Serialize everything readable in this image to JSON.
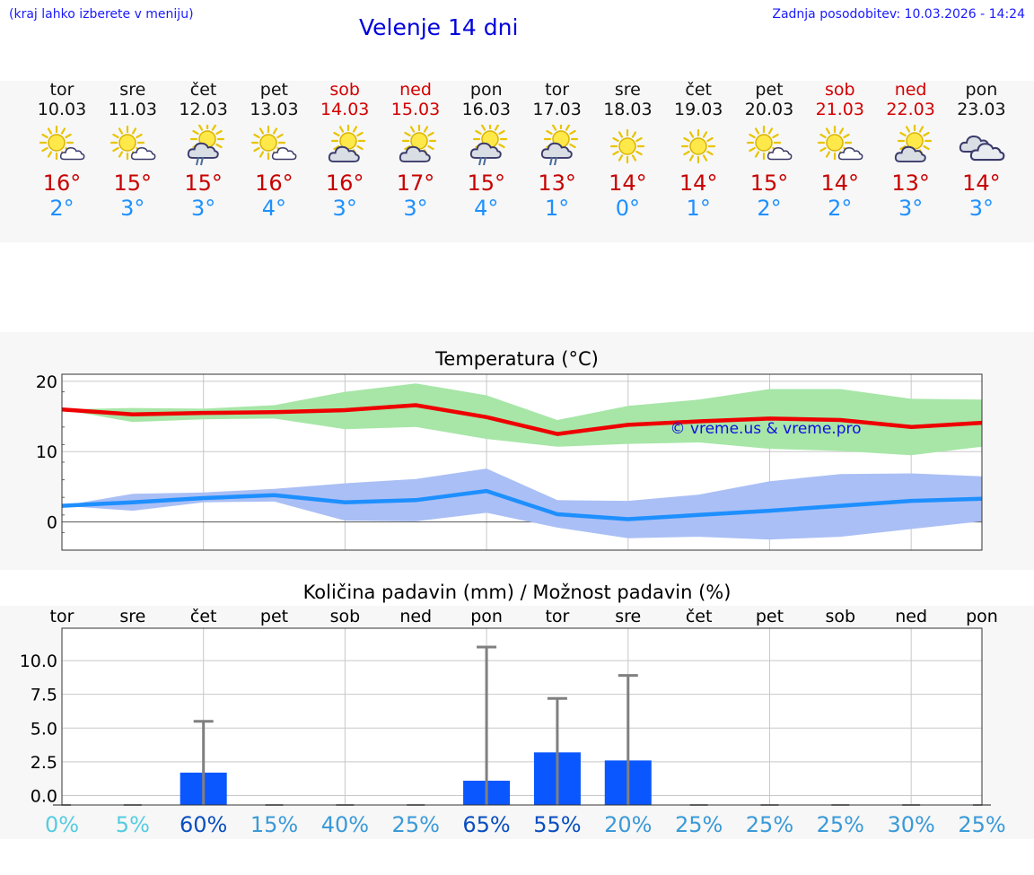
{
  "header": {
    "note": "(kraj lahko izberete v meniju)",
    "title": "Velenje 14 dni",
    "updated": "Zadnja posodobitev: 10.03.2026 - 14:24"
  },
  "days": [
    {
      "name": "tor",
      "date": "10.03",
      "weekend": false,
      "icon": "sun-cloud-icon",
      "max": "16°",
      "min": "2°"
    },
    {
      "name": "sre",
      "date": "11.03",
      "weekend": false,
      "icon": "sun-cloud-icon",
      "max": "15°",
      "min": "3°"
    },
    {
      "name": "čet",
      "date": "12.03",
      "weekend": false,
      "icon": "sun-cloud-rain-icon",
      "max": "15°",
      "min": "3°"
    },
    {
      "name": "pet",
      "date": "13.03",
      "weekend": false,
      "icon": "sun-cloud-icon",
      "max": "16°",
      "min": "4°"
    },
    {
      "name": "sob",
      "date": "14.03",
      "weekend": true,
      "icon": "sun-big-cloud-icon",
      "max": "16°",
      "min": "3°"
    },
    {
      "name": "ned",
      "date": "15.03",
      "weekend": true,
      "icon": "sun-big-cloud-icon",
      "max": "17°",
      "min": "3°"
    },
    {
      "name": "pon",
      "date": "16.03",
      "weekend": false,
      "icon": "sun-cloud-rain-icon",
      "max": "15°",
      "min": "4°"
    },
    {
      "name": "tor",
      "date": "17.03",
      "weekend": false,
      "icon": "sun-cloud-rain-icon",
      "max": "13°",
      "min": "1°"
    },
    {
      "name": "sre",
      "date": "18.03",
      "weekend": false,
      "icon": "sun-icon",
      "max": "14°",
      "min": "0°"
    },
    {
      "name": "čet",
      "date": "19.03",
      "weekend": false,
      "icon": "sun-icon",
      "max": "14°",
      "min": "1°"
    },
    {
      "name": "pet",
      "date": "20.03",
      "weekend": false,
      "icon": "sun-cloud-icon",
      "max": "15°",
      "min": "2°"
    },
    {
      "name": "sob",
      "date": "21.03",
      "weekend": true,
      "icon": "sun-cloud-icon",
      "max": "14°",
      "min": "2°"
    },
    {
      "name": "ned",
      "date": "22.03",
      "weekend": true,
      "icon": "sun-big-cloud-icon",
      "max": "13°",
      "min": "3°"
    },
    {
      "name": "pon",
      "date": "23.03",
      "weekend": false,
      "icon": "clouds-icon",
      "max": "14°",
      "min": "3°"
    }
  ],
  "chart_data": [
    {
      "type": "line",
      "title": "Temperatura (°C)",
      "xlabel": "",
      "ylabel": "",
      "x": [
        0,
        1,
        2,
        3,
        4,
        5,
        6,
        7,
        8,
        9,
        10,
        11,
        12,
        13
      ],
      "ylim": [
        -4,
        21
      ],
      "yticks": [
        0,
        10,
        20
      ],
      "watermark": "© vreme.us & vreme.pro",
      "series": [
        {
          "name": "max",
          "color": "#ee0000",
          "values": [
            16,
            15.3,
            15.5,
            15.6,
            15.9,
            16.6,
            14.9,
            12.5,
            13.8,
            14.3,
            14.7,
            14.5,
            13.5,
            14.1
          ]
        },
        {
          "name": "max-range",
          "color": "#a7e6a7",
          "low": [
            16,
            14.2,
            14.6,
            14.7,
            13.2,
            13.5,
            11.8,
            10.7,
            11.1,
            11.3,
            10.4,
            10.1,
            9.5,
            10.7
          ],
          "high": [
            16,
            16.2,
            16.1,
            16.6,
            18.5,
            19.7,
            18,
            14.5,
            16.5,
            17.4,
            18.9,
            18.9,
            17.5,
            17.4
          ]
        },
        {
          "name": "min",
          "color": "#1e8fff",
          "values": [
            2.3,
            2.8,
            3.4,
            3.8,
            2.8,
            3.1,
            4.4,
            1.1,
            0.4,
            1,
            1.6,
            2.3,
            3,
            3.3
          ]
        },
        {
          "name": "min-range",
          "color": "#aabff5",
          "low": [
            2.3,
            1.6,
            2.8,
            2.9,
            0.2,
            0.1,
            1.3,
            -0.8,
            -2.3,
            -2.1,
            -2.5,
            -2.1,
            -1,
            0.1
          ],
          "high": [
            2.3,
            4,
            4.2,
            4.7,
            5.5,
            6.1,
            7.6,
            3.1,
            3,
            3.9,
            5.8,
            6.8,
            6.9,
            6.5
          ]
        }
      ]
    },
    {
      "type": "bar",
      "title": "Količina padavin (mm) / Možnost padavin (%)",
      "categories": [
        "tor",
        "sre",
        "čet",
        "pet",
        "sob",
        "ned",
        "pon",
        "tor",
        "sre",
        "čet",
        "pet",
        "sob",
        "ned",
        "pon"
      ],
      "values": [
        0,
        0,
        1.7,
        0,
        0,
        0,
        1.1,
        3.2,
        2.6,
        0,
        0,
        0,
        0,
        0
      ],
      "errors_high": [
        0,
        0,
        5.5,
        0,
        0,
        0,
        11,
        7.2,
        8.9,
        0,
        0,
        0,
        0,
        0
      ],
      "ylim": [
        -0.7,
        12.4
      ],
      "yticks": [
        "0.0",
        "2.5",
        "5.0",
        "7.5",
        "10.0"
      ],
      "ytick_values": [
        0,
        2.5,
        5,
        7.5,
        10
      ],
      "probabilities": [
        "0%",
        "5%",
        "60%",
        "15%",
        "40%",
        "25%",
        "65%",
        "55%",
        "20%",
        "25%",
        "25%",
        "25%",
        "30%",
        "25%"
      ],
      "prob_values": [
        0,
        5,
        60,
        15,
        40,
        25,
        65,
        55,
        20,
        25,
        25,
        25,
        30,
        25
      ],
      "bar_color": "#0a56ff"
    }
  ]
}
